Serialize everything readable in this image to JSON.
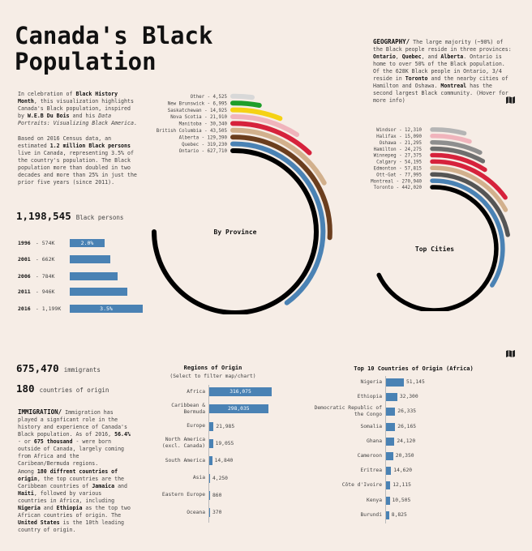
{
  "title": "Canada's Black\nPopulation",
  "intro": {
    "p1": [
      "In celebration of ",
      "Black History Month",
      ", this visualization highlights Canada's Black population, inspired by ",
      "W.E.B Du Bois",
      " and his ",
      "Data Portraits: Visualizing Black America",
      "."
    ],
    "p2": [
      "Based on 2016 Census data, an estimated ",
      "1.2 million Black persons",
      " live in Canada, representing 3.5% of the country's population. The Black population more than doubled in two decades and more than 25% in just the prior five years (since 2011)."
    ]
  },
  "total": {
    "value": "1,198,545",
    "label": "Black persons"
  },
  "years": [
    {
      "year": "1996",
      "label": "574K",
      "value": 574,
      "badge": "2.0%"
    },
    {
      "year": "2001",
      "label": "662K",
      "value": 662,
      "badge": ""
    },
    {
      "year": "2006",
      "label": "784K",
      "value": 784,
      "badge": ""
    },
    {
      "year": "2011",
      "label": "946K",
      "value": 946,
      "badge": ""
    },
    {
      "year": "2016",
      "label": "1,199K",
      "value": 1199,
      "badge": "3.5%"
    }
  ],
  "geography": {
    "heading": "GEOGRAPHY/",
    "text": [
      "The large majority (~90%) of the Black people reside in three provinces: ",
      "Ontario",
      ", ",
      "Quebec",
      ", and ",
      "Alberta",
      ". Ontario is home to over 50% of the Black population. Of the 628K Black people in Ontario, 3/4 reside in ",
      "Toronto",
      " and the nearby cities of Hamilton and Oshawa. ",
      "Montreal",
      " has the second largest Black community. (Hover for more info)"
    ]
  },
  "icons": {
    "map1": "map-icon",
    "map2": "map-icon"
  },
  "chart_data": [
    {
      "type": "radial-bar",
      "title": "By Province",
      "categories": [
        "Other",
        "New Brunswick",
        "Saskatchewan",
        "Nova Scotia",
        "Manitoba",
        "British Columbia",
        "Alberta",
        "Quebec",
        "Ontario"
      ],
      "values": [
        4525,
        6995,
        14925,
        21910,
        30340,
        43505,
        129390,
        319230,
        627710
      ],
      "labels": [
        "Other - 4,525",
        "New Brunswick - 6,995",
        "Saskatchewan - 14,925",
        "Nova Scotia - 21,910",
        "Manitoba - 30,340",
        "British Columbia - 43,505",
        "Alberta - 129,390",
        "Quebec - 319,230",
        "Ontario - 627,710"
      ],
      "colors": [
        "#d8d8d8",
        "#1e9e2a",
        "#f5d214",
        "#f0b4bc",
        "#d6223c",
        "#d2b08c",
        "#6b3e1e",
        "#4a82b4",
        "#000000"
      ]
    },
    {
      "type": "radial-bar",
      "title": "Top Cities",
      "categories": [
        "Windsor",
        "Halifax",
        "Oshawa",
        "Hamilton",
        "Winnepeg",
        "Calgary",
        "Edmonton",
        "Ott-Gat",
        "Montreal",
        "Toronto"
      ],
      "values": [
        12310,
        15090,
        21295,
        24275,
        27375,
        54195,
        57815,
        77995,
        270940,
        442020
      ],
      "labels": [
        "Windsor - 12,310",
        "Halifax - 15,090",
        "Oshawa - 21,295",
        "Hamilton - 24,275",
        "Winnepeg - 27,375",
        "Calgary - 54,195",
        "Edmonton - 57,815",
        "Ott-Gat - 77,995",
        "Montreal - 270,940",
        "Toronto - 442,020"
      ],
      "colors": [
        "#b5b5b5",
        "#f0b4bc",
        "#8e8e8e",
        "#6e6e6e",
        "#d6223c",
        "#d6223c",
        "#d2b08c",
        "#555555",
        "#4a82b4",
        "#000000"
      ]
    },
    {
      "type": "bar",
      "title": "Regions of Origin",
      "subtitle": "(Select to filter map/chart)",
      "categories": [
        "Africa",
        "Caribbean & Bermuda",
        "Europe",
        "North America (excl. Canada)",
        "South America",
        "Asia",
        "Eastern Europe",
        "Oceana"
      ],
      "values": [
        316075,
        298035,
        21985,
        19055,
        14840,
        4250,
        860,
        370
      ],
      "labels": [
        "316,075",
        "298,035",
        "21,985",
        "19,055",
        "14,840",
        "4,250",
        "860",
        "370"
      ]
    },
    {
      "type": "bar",
      "title": "Top 10 Countries of Origin (Africa)",
      "categories": [
        "Nigeria",
        "Ethiopia",
        "Democratic Republic of the Congo",
        "Somalia",
        "Ghana",
        "Cameroon",
        "Eritrea",
        "Côte d'Ivoire",
        "Kenya",
        "Burundi"
      ],
      "values": [
        51145,
        32300,
        26335,
        26165,
        24120,
        20350,
        14620,
        12115,
        10505,
        8825
      ],
      "labels": [
        "51,145",
        "32,300",
        "26,335",
        "26,165",
        "24,120",
        "20,350",
        "14,620",
        "12,115",
        "10,505",
        "8,825"
      ]
    }
  ],
  "immigrants": {
    "value": "675,470",
    "label": "immigrants"
  },
  "origins": {
    "value": "180",
    "label": "countries of origin"
  },
  "immigration": {
    "heading": "IMMIGRATION/",
    "p1": [
      "Immigration has played a signficant role in the history and experience of Canada's Black population. As of 2016, ",
      "56.4%",
      " - or ",
      "675 thousand",
      " - were born outside of Canada, largely coming from Africa and the Caribean/Bermuda regions."
    ],
    "p2": [
      "Among ",
      "180 diffrent countries of origin",
      ", the top countries are the Caribbean countries of ",
      "Jamaica",
      " and ",
      "Haiti",
      ", followed by various countries in Africa, including ",
      "Nigeria",
      " and ",
      "Ethiopia",
      " as the top two African countries of origin. The ",
      "United States",
      " is the 10th leading country of origin."
    ]
  }
}
